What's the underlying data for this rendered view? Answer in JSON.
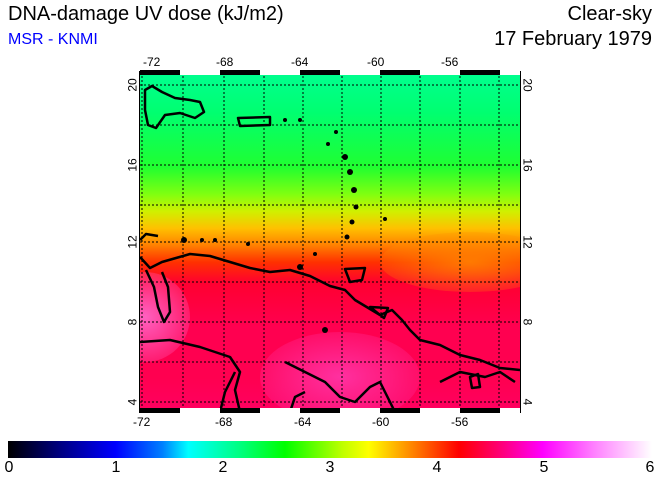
{
  "header": {
    "title": "DNA-damage UV dose (kJ/m2)",
    "source": "MSR - KNMI",
    "condition": "Clear-sky",
    "date": "17 February 1979"
  },
  "map": {
    "lon_labels": [
      "-72",
      "-68",
      "-64",
      "-60",
      "-56"
    ],
    "lat_labels": [
      "20",
      "16",
      "12",
      "8",
      "4"
    ],
    "lon_range": [
      -72,
      -53
    ],
    "lat_range": [
      3.5,
      20.5
    ]
  },
  "colorbar": {
    "labels": [
      "0",
      "1",
      "2",
      "3",
      "4",
      "5",
      "6"
    ],
    "range": [
      0,
      6
    ],
    "unit": "kJ/m2"
  }
}
